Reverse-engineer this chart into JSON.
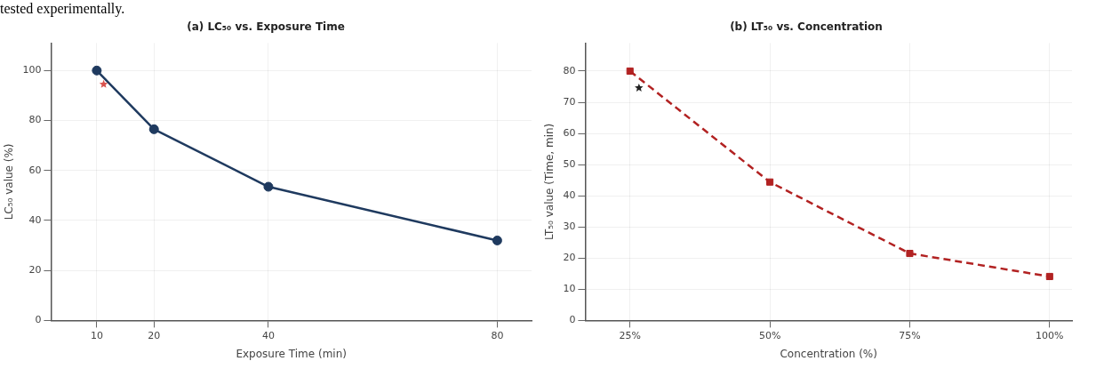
{
  "chart_data": [
    {
      "type": "line",
      "title": "(a) LC₅₀ vs. Exposure Time",
      "xlabel": "Exposure Time (min)",
      "ylabel": "LC₅₀ value (%)",
      "annotations": [
        "tested experimentally."
      ],
      "x": [
        10,
        20,
        40,
        80
      ],
      "series": [
        {
          "color": "#1f3a5f",
          "values": [
            100,
            76.5,
            53.5,
            32
          ],
          "marker": "circle",
          "line_style": "solid"
        },
        {
          "type": "scatter",
          "color": "#d9534f",
          "x": [
            11.2
          ],
          "values": [
            94.5
          ],
          "marker": "star"
        }
      ],
      "xlim": [
        2,
        86
      ],
      "xticks": [
        10,
        20,
        40,
        80
      ],
      "ylim": [
        0,
        111
      ],
      "yticks": [
        0,
        20,
        40,
        60,
        80,
        100
      ],
      "grid": true,
      "legend": false
    },
    {
      "type": "line",
      "title": "(b) LT₅₀ vs. Concentration",
      "xlabel": "Concentration (%)",
      "ylabel": "LT₅₀ value (Time, min)",
      "x": [
        25,
        50,
        75,
        100
      ],
      "series": [
        {
          "color": "#b22222",
          "values": [
            80,
            44.4,
            21.5,
            14.1
          ],
          "marker": "square",
          "line_style": "dashed"
        },
        {
          "type": "scatter",
          "color": "#222222",
          "x": [
            26.6
          ],
          "values": [
            74.6
          ],
          "marker": "star"
        }
      ],
      "xlim": [
        17,
        104
      ],
      "xticks": [
        {
          "value": 25,
          "label": "25%"
        },
        {
          "value": 50,
          "label": "50%"
        },
        {
          "value": 75,
          "label": "75%"
        },
        {
          "value": 100,
          "label": "100%"
        }
      ],
      "ylim": [
        0,
        89
      ],
      "yticks": [
        0,
        10,
        20,
        30,
        40,
        50,
        60,
        70,
        80
      ],
      "grid": true,
      "legend": false
    }
  ]
}
